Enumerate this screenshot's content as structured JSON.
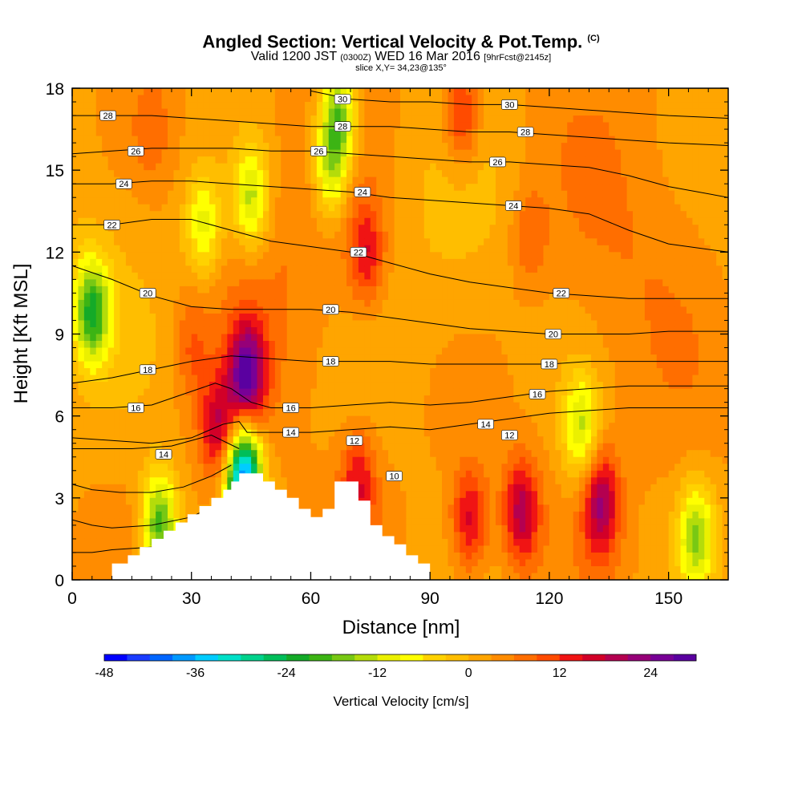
{
  "chart_data": {
    "type": "heatmap",
    "title": "Angled Section: Vertical Velocity & Pot.Temp.",
    "title_unit": "(C)",
    "subtitle": {
      "valid_prefix": "Valid 1200 JST",
      "utc": "(0300Z)",
      "date": "WED 16 Mar 2016",
      "forecast": "[9hrFcst@2145z]",
      "slice": "slice X,Y= 34,23@135°"
    },
    "xlabel": "Distance [nm]",
    "ylabel": "Height [Kft MSL]",
    "xlim": [
      0,
      165
    ],
    "ylim": [
      0,
      18
    ],
    "x_ticks": [
      "0",
      "30",
      "60",
      "90",
      "120",
      "150"
    ],
    "y_ticks": [
      "0",
      "3",
      "6",
      "9",
      "12",
      "15",
      "18"
    ],
    "x_tick_values": [
      0,
      30,
      60,
      90,
      120,
      150
    ],
    "y_tick_values": [
      0,
      3,
      6,
      9,
      12,
      15,
      18
    ],
    "colorbar": {
      "title": "Vertical Velocity [cm/s]",
      "tick_labels": [
        "-48",
        "-36",
        "-24",
        "-12",
        "0",
        "12",
        "24"
      ],
      "tick_values": [
        -48,
        -36,
        -24,
        -12,
        0,
        12,
        24
      ],
      "range": [
        -48,
        30
      ],
      "step": 3,
      "colors": [
        "#0000ff",
        "#1a3cff",
        "#0066ff",
        "#0099ff",
        "#00ccff",
        "#00e0c8",
        "#00d28c",
        "#00be5a",
        "#14aa28",
        "#3cb414",
        "#78c814",
        "#b4dc0a",
        "#ebf000",
        "#ffff00",
        "#ffd200",
        "#ffbe00",
        "#ffa500",
        "#ff8c00",
        "#ff6e00",
        "#ff4b00",
        "#f01414",
        "#d20028",
        "#b40050",
        "#960078",
        "#780096",
        "#5a00a0"
      ]
    },
    "terrain_profile": {
      "x": [
        0,
        10,
        10,
        14,
        14,
        17,
        17,
        20,
        20,
        23,
        23,
        26,
        26,
        29,
        29,
        32,
        32,
        35,
        35,
        38,
        38,
        40,
        40,
        42,
        42,
        45,
        45,
        48,
        48,
        51,
        51,
        54,
        54,
        57,
        57,
        60,
        60,
        63,
        63,
        66,
        66,
        72,
        72,
        75,
        75,
        78,
        78,
        81,
        81,
        84,
        84,
        87,
        87,
        90,
        90
      ],
      "y": [
        0,
        0,
        0.6,
        0.6,
        0.9,
        0.9,
        1.2,
        1.2,
        1.5,
        1.5,
        1.8,
        1.8,
        2.1,
        2.1,
        2.4,
        2.4,
        2.7,
        2.7,
        3.0,
        3.0,
        3.3,
        3.3,
        3.6,
        3.6,
        3.9,
        3.9,
        3.9,
        3.9,
        3.6,
        3.6,
        3.3,
        3.3,
        3.0,
        3.0,
        2.6,
        2.6,
        2.3,
        2.3,
        2.6,
        2.6,
        3.6,
        3.6,
        2.9,
        2.9,
        2.0,
        2.0,
        1.6,
        1.6,
        1.3,
        1.3,
        0.9,
        0.9,
        0.6,
        0.6,
        0
      ]
    },
    "vertical_velocity_features": [
      {
        "x": 44,
        "y": 7.5,
        "peak": 27
      },
      {
        "x": 37,
        "y": 5.5,
        "peak": 18
      },
      {
        "x": 43,
        "y": 3.8,
        "peak": -40
      },
      {
        "x": 5,
        "y": 9.8,
        "peak": -20
      },
      {
        "x": 67,
        "y": 17,
        "peak": -17
      },
      {
        "x": 65,
        "y": 15,
        "peak": -12
      },
      {
        "x": 45,
        "y": 14,
        "peak": -13
      },
      {
        "x": 33,
        "y": 13,
        "peak": -10
      },
      {
        "x": 98,
        "y": 17,
        "peak": 15
      },
      {
        "x": 74,
        "y": 12,
        "peak": 15
      },
      {
        "x": 100,
        "y": 2.2,
        "peak": 17
      },
      {
        "x": 113,
        "y": 2.5,
        "peak": 20
      },
      {
        "x": 133,
        "y": 2.8,
        "peak": 21
      },
      {
        "x": 72,
        "y": 3.5,
        "peak": 15
      },
      {
        "x": 22,
        "y": 2.0,
        "peak": -20
      },
      {
        "x": 20,
        "y": 16.5,
        "peak": 8
      },
      {
        "x": 115,
        "y": 12.5,
        "peak": 9
      },
      {
        "x": 30,
        "y": 8.5,
        "peak": 9
      },
      {
        "x": 128,
        "y": 5.6,
        "peak": -12
      },
      {
        "x": 157,
        "y": 1.6,
        "peak": -14
      }
    ],
    "theta_contour_labels": [
      {
        "text": "30",
        "x": 68,
        "y": 17.6
      },
      {
        "text": "30",
        "x": 110,
        "y": 17.4
      },
      {
        "text": "28",
        "x": 9,
        "y": 17.0
      },
      {
        "text": "28",
        "x": 68,
        "y": 16.6
      },
      {
        "text": "28",
        "x": 114,
        "y": 16.4
      },
      {
        "text": "26",
        "x": 16,
        "y": 15.7
      },
      {
        "text": "26",
        "x": 62,
        "y": 15.7
      },
      {
        "text": "26",
        "x": 107,
        "y": 15.3
      },
      {
        "text": "24",
        "x": 13,
        "y": 14.5
      },
      {
        "text": "24",
        "x": 73,
        "y": 14.2
      },
      {
        "text": "24",
        "x": 111,
        "y": 13.7
      },
      {
        "text": "22",
        "x": 10,
        "y": 13.0
      },
      {
        "text": "22",
        "x": 72,
        "y": 12.0
      },
      {
        "text": "22",
        "x": 123,
        "y": 10.5
      },
      {
        "text": "20",
        "x": 19,
        "y": 10.5
      },
      {
        "text": "20",
        "x": 65,
        "y": 9.9
      },
      {
        "text": "20",
        "x": 121,
        "y": 9.0
      },
      {
        "text": "18",
        "x": 19,
        "y": 7.7
      },
      {
        "text": "18",
        "x": 65,
        "y": 8.0
      },
      {
        "text": "18",
        "x": 120,
        "y": 7.9
      },
      {
        "text": "16",
        "x": 16,
        "y": 6.3
      },
      {
        "text": "16",
        "x": 55,
        "y": 6.3
      },
      {
        "text": "16",
        "x": 117,
        "y": 6.8
      },
      {
        "text": "14",
        "x": 23,
        "y": 4.6
      },
      {
        "text": "14",
        "x": 55,
        "y": 5.4
      },
      {
        "text": "14",
        "x": 104,
        "y": 5.7
      },
      {
        "text": "12",
        "x": 71,
        "y": 5.1
      },
      {
        "text": "12",
        "x": 110,
        "y": 5.3
      },
      {
        "text": "10",
        "x": 81,
        "y": 3.8
      }
    ],
    "theta_contours": [
      {
        "level": 8,
        "x": [
          0,
          5,
          10,
          20,
          30,
          38,
          39
        ],
        "y": [
          1.0,
          1.0,
          1.1,
          1.2,
          1.5,
          2.6,
          2.7
        ]
      },
      {
        "level": 9,
        "x": [
          0,
          5,
          10,
          20,
          30,
          38,
          40
        ],
        "y": [
          2.2,
          2.0,
          1.9,
          2.0,
          2.3,
          2.9,
          3.2
        ]
      },
      {
        "level": 10,
        "x": [
          0,
          5,
          12,
          20,
          28,
          35,
          40
        ],
        "y": [
          3.5,
          3.3,
          3.2,
          3.2,
          3.4,
          3.8,
          4.2
        ]
      },
      {
        "level": 12,
        "x": [
          0,
          8,
          15,
          25,
          35,
          42
        ],
        "y": [
          4.8,
          4.8,
          4.8,
          4.9,
          5.3,
          4.8
        ]
      },
      {
        "level": 14,
        "x": [
          0,
          10,
          20,
          30,
          38,
          42,
          44,
          50,
          60,
          70,
          80,
          90,
          100,
          110,
          120,
          130,
          140,
          150,
          165
        ],
        "y": [
          5.2,
          5.1,
          5.0,
          5.2,
          5.7,
          5.8,
          5.4,
          5.4,
          5.4,
          5.5,
          5.6,
          5.5,
          5.7,
          5.9,
          6.1,
          6.2,
          6.3,
          6.3,
          6.3
        ]
      },
      {
        "level": 16,
        "x": [
          0,
          10,
          20,
          30,
          36,
          40,
          45,
          50,
          60,
          70,
          80,
          90,
          100,
          110,
          120,
          130,
          140,
          150,
          165
        ],
        "y": [
          6.3,
          6.3,
          6.4,
          6.9,
          7.2,
          7.0,
          6.5,
          6.3,
          6.3,
          6.4,
          6.5,
          6.4,
          6.5,
          6.7,
          6.9,
          7.0,
          7.1,
          7.1,
          7.1
        ]
      },
      {
        "level": 18,
        "x": [
          0,
          10,
          20,
          30,
          40,
          50,
          60,
          70,
          80,
          90,
          100,
          110,
          120,
          130,
          140,
          150,
          165
        ],
        "y": [
          7.2,
          7.4,
          7.7,
          8.0,
          8.2,
          8.1,
          8.0,
          8.0,
          8.0,
          7.9,
          7.9,
          7.9,
          7.9,
          8.0,
          8.0,
          8.0,
          8.0
        ]
      },
      {
        "level": 20,
        "x": [
          0,
          10,
          20,
          30,
          40,
          50,
          60,
          70,
          80,
          90,
          100,
          110,
          120,
          130,
          140,
          150,
          165
        ],
        "y": [
          11.5,
          11.0,
          10.4,
          10.0,
          9.9,
          9.9,
          9.9,
          9.8,
          9.6,
          9.4,
          9.2,
          9.1,
          9.0,
          9.0,
          9.0,
          9.1,
          9.1
        ]
      },
      {
        "level": 22,
        "x": [
          0,
          10,
          20,
          30,
          40,
          50,
          60,
          70,
          80,
          90,
          100,
          110,
          120,
          130,
          140,
          150,
          165
        ],
        "y": [
          13.0,
          13.0,
          13.2,
          13.2,
          12.8,
          12.4,
          12.2,
          12.0,
          11.6,
          11.2,
          10.9,
          10.7,
          10.5,
          10.4,
          10.3,
          10.3,
          10.3
        ]
      },
      {
        "level": 24,
        "x": [
          0,
          10,
          20,
          30,
          40,
          50,
          60,
          70,
          80,
          90,
          100,
          110,
          120,
          130,
          140,
          150,
          165
        ],
        "y": [
          14.5,
          14.5,
          14.6,
          14.6,
          14.5,
          14.4,
          14.3,
          14.2,
          14.0,
          13.9,
          13.8,
          13.7,
          13.6,
          13.4,
          12.8,
          12.3,
          12.0
        ]
      },
      {
        "level": 26,
        "x": [
          0,
          10,
          20,
          30,
          40,
          50,
          60,
          70,
          80,
          90,
          100,
          110,
          120,
          130,
          140,
          150,
          165
        ],
        "y": [
          15.6,
          15.7,
          15.8,
          15.8,
          15.8,
          15.7,
          15.7,
          15.6,
          15.5,
          15.4,
          15.3,
          15.3,
          15.2,
          15.1,
          14.8,
          14.4,
          14.0
        ]
      },
      {
        "level": 28,
        "x": [
          0,
          10,
          20,
          30,
          40,
          50,
          60,
          70,
          80,
          90,
          100,
          110,
          120,
          130,
          140,
          150,
          165
        ],
        "y": [
          17.0,
          17.0,
          17.0,
          16.9,
          16.8,
          16.7,
          16.6,
          16.6,
          16.6,
          16.5,
          16.4,
          16.4,
          16.3,
          16.2,
          16.1,
          16.0,
          15.9
        ]
      },
      {
        "level": 30,
        "x": [
          60,
          70,
          80,
          90,
          100,
          110,
          120,
          130,
          140,
          150,
          165
        ],
        "y": [
          17.9,
          17.6,
          17.5,
          17.5,
          17.4,
          17.4,
          17.3,
          17.2,
          17.1,
          17.0,
          16.9
        ]
      }
    ]
  }
}
